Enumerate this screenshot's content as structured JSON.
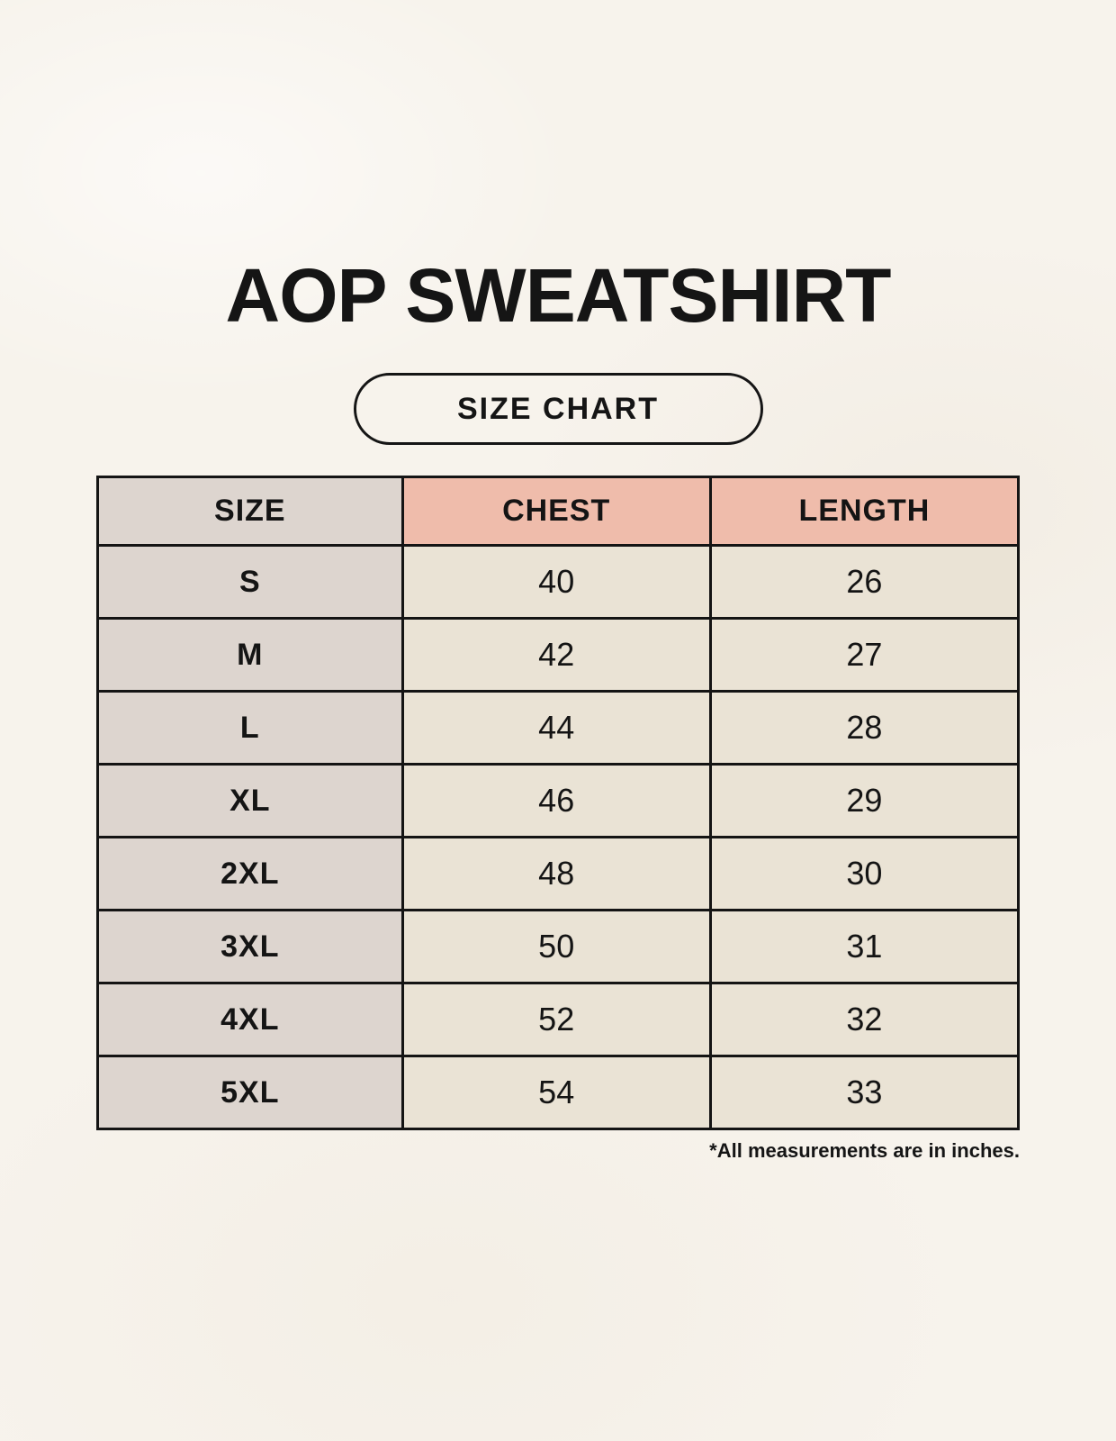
{
  "page": {
    "title": "AOP SWEATSHIRT",
    "size_chart_label": "SIZE CHART",
    "footnote": "*All measurements are in inches."
  },
  "colors": {
    "page_background": "#f7f3ec",
    "size_column_bg": "#ddd5cf",
    "measure_header_bg": "#efbcab",
    "data_cell_bg": "#eae3d5",
    "border": "#141414",
    "text": "#151515"
  },
  "chart_data": {
    "type": "table",
    "title": "AOP SWEATSHIRT",
    "subtitle": "SIZE CHART",
    "units": "inches",
    "note": "*All measurements are in inches.",
    "columns": [
      "SIZE",
      "CHEST",
      "LENGTH"
    ],
    "rows": [
      {
        "size": "S",
        "chest": "40",
        "length": "26"
      },
      {
        "size": "M",
        "chest": "42",
        "length": "27"
      },
      {
        "size": "L",
        "chest": "44",
        "length": "28"
      },
      {
        "size": "XL",
        "chest": "46",
        "length": "29"
      },
      {
        "size": "2XL",
        "chest": "48",
        "length": "30"
      },
      {
        "size": "3XL",
        "chest": "50",
        "length": "31"
      },
      {
        "size": "4XL",
        "chest": "52",
        "length": "32"
      },
      {
        "size": "5XL",
        "chest": "54",
        "length": "33"
      }
    ]
  }
}
